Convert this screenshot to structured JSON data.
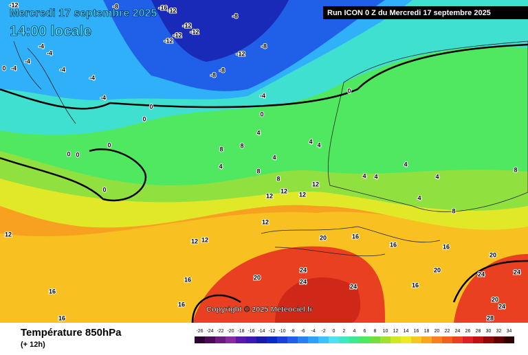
{
  "header": {
    "date": "Mercredi 17 septembre 2025",
    "time": "14:00 locale",
    "run": "Run ICON 0 Z du Mercredi 17 septembre 2025"
  },
  "copyright": "Copyright © 2025 Meteociel.fr",
  "footer": {
    "title": "Température 850hPa",
    "lead": "(+ 12h)"
  },
  "contour_labels": [
    -12,
    -16,
    -12,
    -8,
    -8,
    -12,
    -12,
    -12,
    -12,
    -12,
    -8,
    -8,
    -8,
    -4,
    0,
    0,
    0,
    0,
    0,
    0,
    0,
    0,
    4,
    8,
    8,
    4,
    4,
    8,
    4,
    4,
    8,
    12,
    12,
    12,
    12,
    12,
    12,
    12,
    12,
    20,
    16,
    16,
    16,
    20,
    24,
    24,
    24,
    16,
    20,
    20,
    24,
    24,
    20,
    24,
    28,
    16,
    16,
    16,
    16,
    4,
    4,
    4,
    8,
    8,
    4,
    4,
    -4,
    -4,
    -4,
    -4,
    0,
    -4,
    -4,
    -4
  ],
  "colorbar": {
    "labels": [
      -26,
      -24,
      -22,
      -20,
      -18,
      -16,
      -14,
      -12,
      -10,
      -8,
      -6,
      -4,
      -2,
      0,
      2,
      4,
      6,
      8,
      10,
      12,
      14,
      16,
      18,
      20,
      22,
      24,
      26,
      28,
      30,
      32,
      34
    ],
    "colors": [
      "#2a0030",
      "#4a0a5a",
      "#6a1a80",
      "#8a2aa0",
      "#5a1aa8",
      "#3a1ab0",
      "#1a1aa8",
      "#0a2ac0",
      "#1a40d8",
      "#2060e8",
      "#2a80f0",
      "#30a0f8",
      "#40c0f8",
      "#50e0f0",
      "#40e8c0",
      "#40e890",
      "#50e860",
      "#70e040",
      "#a0e030",
      "#d0e820",
      "#f0e820",
      "#f8c820",
      "#f8a820",
      "#f88020",
      "#f06020",
      "#e84020",
      "#e02020",
      "#c01010",
      "#900808",
      "#600000",
      "#300000"
    ]
  }
}
